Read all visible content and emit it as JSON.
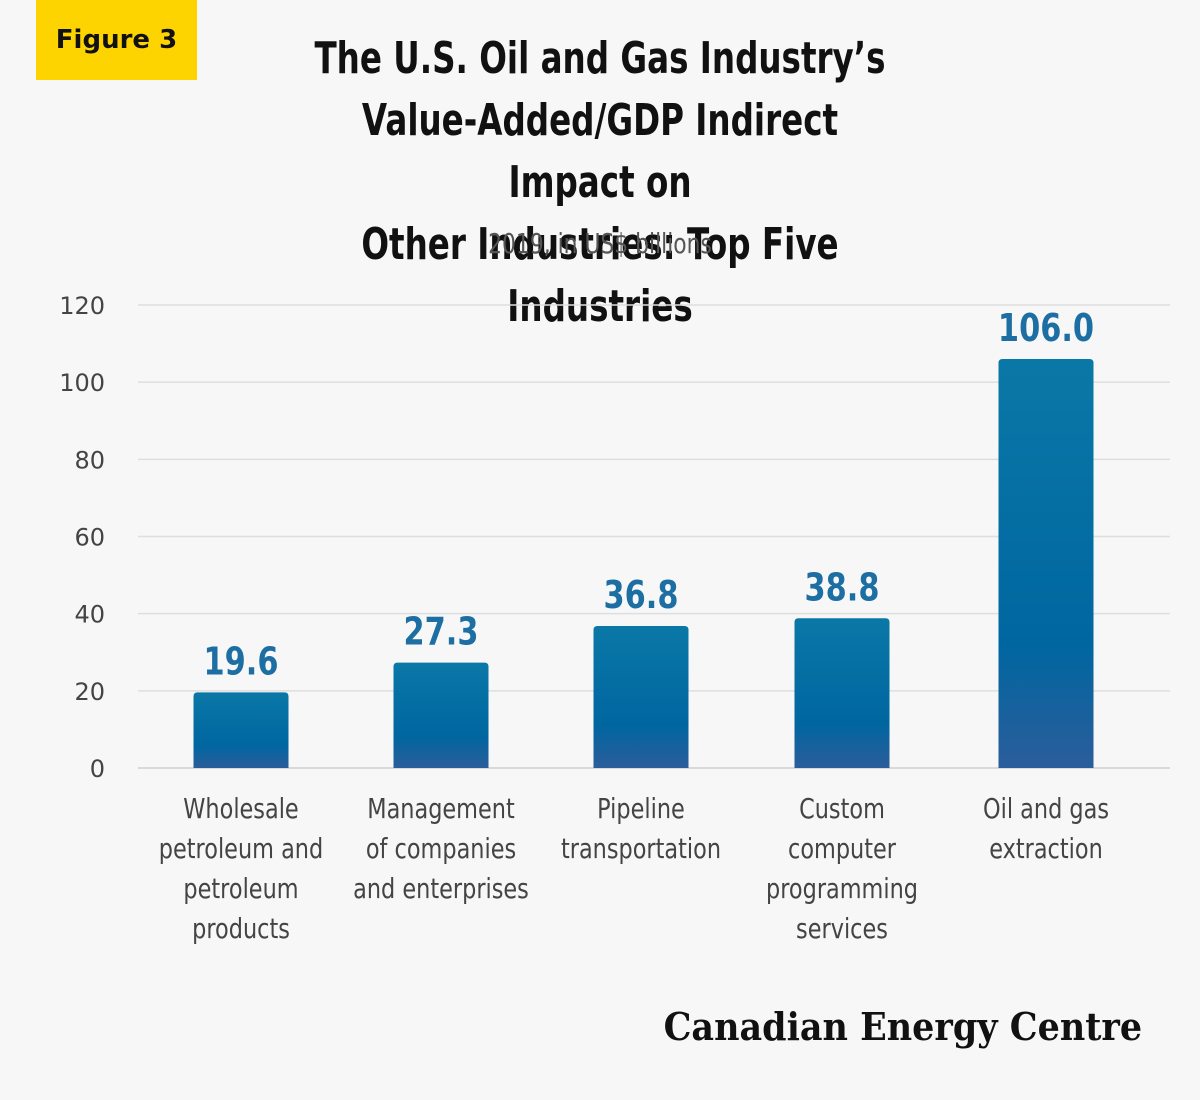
{
  "badge": "Figure 3",
  "title_lines": [
    "The U.S. Oil and Gas Industry’s",
    "Value-Added/GDP Indirect Impact on",
    "Other Industries: Top Five Industries"
  ],
  "subtitle": "2019, in US$ billions",
  "brand": "Canadian Energy Centre",
  "colors": {
    "bar_top": "#0a78a7",
    "bar_bottom": "#2b5d9b",
    "value_text": "#1d6fa3",
    "badge": "#fdd400"
  },
  "chart_data": {
    "type": "bar",
    "categories": [
      [
        "Wholesale",
        "petroleum and",
        "petroleum",
        "products"
      ],
      [
        "Management",
        "of companies",
        "and enterprises"
      ],
      [
        "Pipeline",
        "transportation"
      ],
      [
        "Custom",
        "computer",
        "programming",
        "services"
      ],
      [
        "Oil and gas",
        "extraction"
      ]
    ],
    "values": [
      19.6,
      27.3,
      36.8,
      38.8,
      106.0
    ],
    "value_labels": [
      "19.6",
      "27.3",
      "36.8",
      "38.8",
      "106.0"
    ],
    "yticks": [
      0,
      20,
      40,
      60,
      80,
      100,
      120
    ],
    "ylim": [
      0,
      120
    ],
    "grid": true
  }
}
